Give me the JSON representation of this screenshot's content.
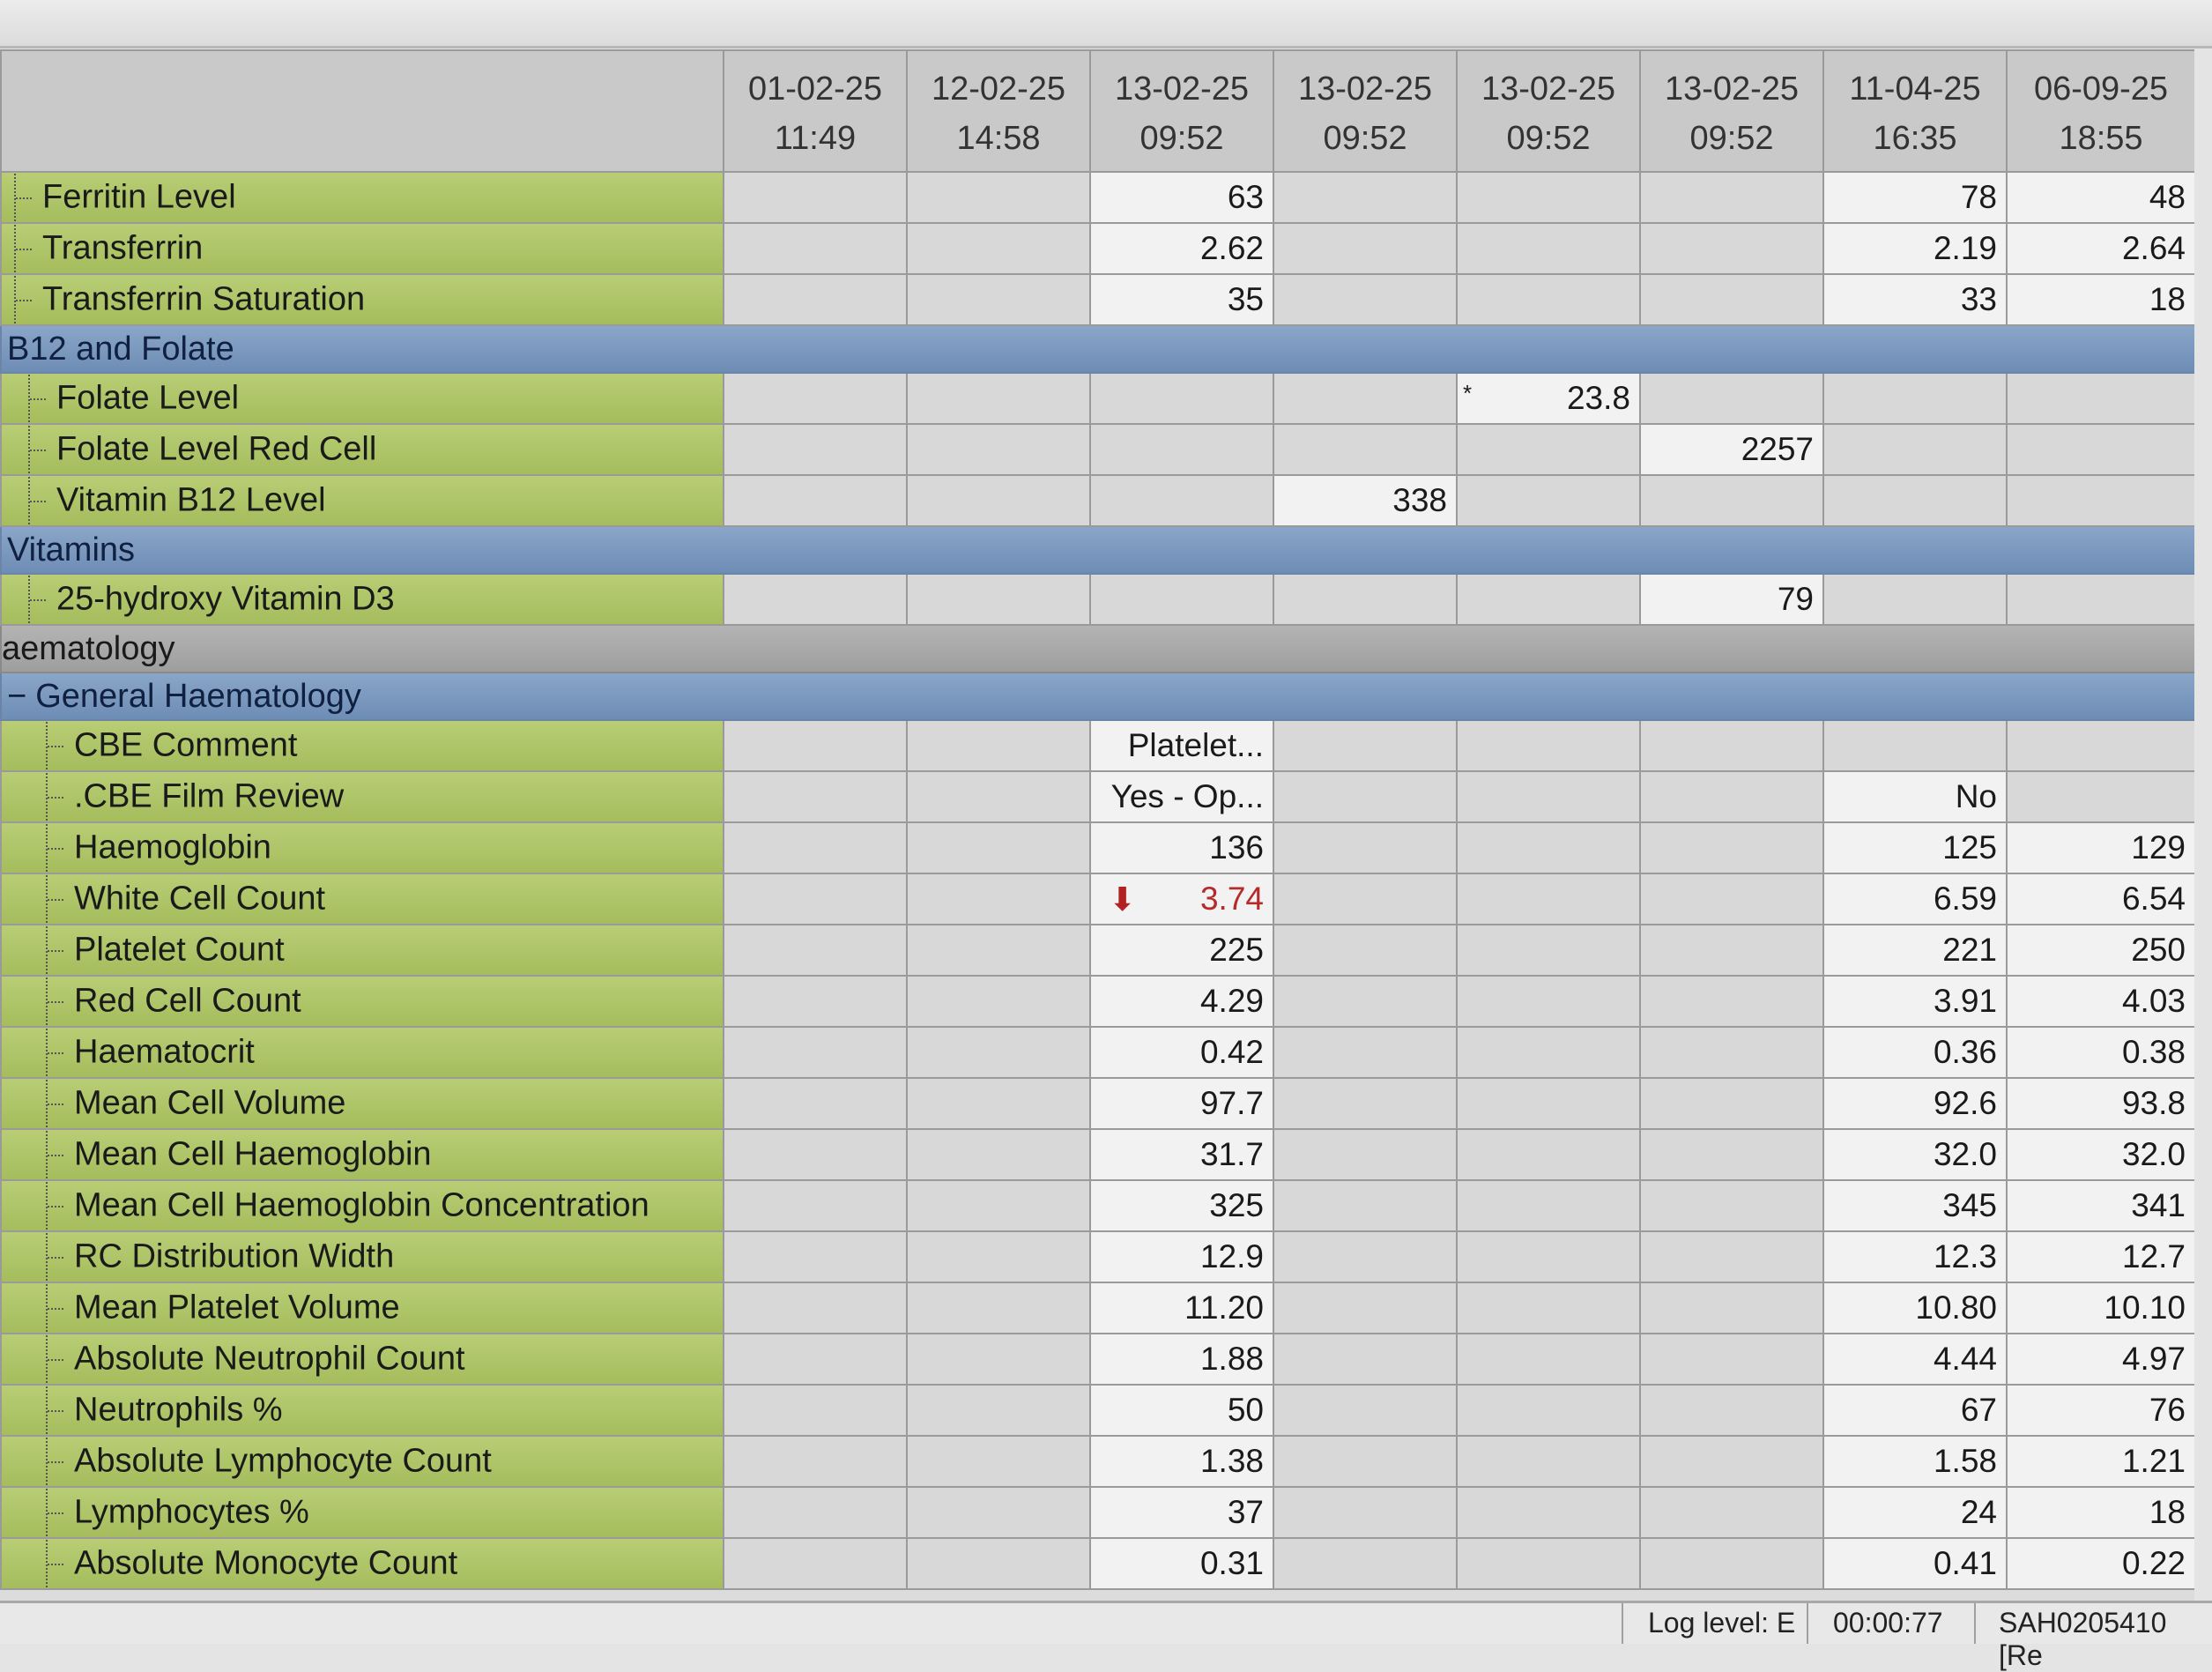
{
  "header": {
    "dates": [
      {
        "date": "01-02-25",
        "time": "11:49"
      },
      {
        "date": "12-02-25",
        "time": "14:58"
      },
      {
        "date": "13-02-25",
        "time": "09:52"
      },
      {
        "date": "13-02-25",
        "time": "09:52"
      },
      {
        "date": "13-02-25",
        "time": "09:52"
      },
      {
        "date": "13-02-25",
        "time": "09:52"
      },
      {
        "date": "11-04-25",
        "time": "16:35"
      },
      {
        "date": "06-09-25",
        "time": "18:55"
      }
    ]
  },
  "rows": [
    {
      "type": "test",
      "name": "Ferritin Level",
      "indent": 0,
      "values": [
        "",
        "",
        "63",
        "",
        "",
        "",
        "78",
        "48"
      ]
    },
    {
      "type": "test",
      "name": "Transferrin",
      "indent": 0,
      "values": [
        "",
        "",
        "2.62",
        "",
        "",
        "",
        "2.19",
        "2.64"
      ]
    },
    {
      "type": "test",
      "name": "Transferrin Saturation",
      "indent": 0,
      "values": [
        "",
        "",
        "35",
        "",
        "",
        "",
        "33",
        "18"
      ]
    },
    {
      "type": "section",
      "name": "B12 and Folate"
    },
    {
      "type": "test",
      "name": "Folate Level",
      "indent": 1,
      "values": [
        "",
        "",
        "",
        "",
        "23.8",
        "",
        "",
        ""
      ],
      "star_col": 4,
      "star": "*"
    },
    {
      "type": "test",
      "name": "Folate Level Red Cell",
      "indent": 1,
      "values": [
        "",
        "",
        "",
        "",
        "",
        "2257",
        "",
        ""
      ]
    },
    {
      "type": "test",
      "name": "Vitamin B12 Level",
      "indent": 1,
      "values": [
        "",
        "",
        "",
        "338",
        "",
        "",
        "",
        ""
      ]
    },
    {
      "type": "section",
      "name": "Vitamins"
    },
    {
      "type": "test",
      "name": "25-hydroxy Vitamin D3",
      "indent": 1,
      "values": [
        "",
        "",
        "",
        "",
        "",
        "79",
        "",
        ""
      ]
    },
    {
      "type": "category",
      "name": "aematology"
    },
    {
      "type": "section",
      "name": "General Haematology",
      "expander": "−"
    },
    {
      "type": "test",
      "name": "CBE Comment",
      "indent": 2,
      "values": [
        "",
        "",
        "Platelet...",
        "",
        "",
        "",
        "",
        ""
      ]
    },
    {
      "type": "test",
      "name": ".CBE Film Review",
      "indent": 2,
      "values": [
        "",
        "",
        "Yes - Op...",
        "",
        "",
        "",
        "No",
        ""
      ]
    },
    {
      "type": "test",
      "name": "Haemoglobin",
      "indent": 2,
      "values": [
        "",
        "",
        "136",
        "",
        "",
        "",
        "125",
        "129"
      ]
    },
    {
      "type": "test",
      "name": "White Cell Count",
      "indent": 2,
      "values": [
        "",
        "",
        "3.74",
        "",
        "",
        "",
        "6.59",
        "6.54"
      ],
      "abnormal_col": 2,
      "abnormal_flag": "low-arrow-icon",
      "abnormal_color": "#b52a2a"
    },
    {
      "type": "test",
      "name": "Platelet Count",
      "indent": 2,
      "values": [
        "",
        "",
        "225",
        "",
        "",
        "",
        "221",
        "250"
      ]
    },
    {
      "type": "test",
      "name": "Red Cell Count",
      "indent": 2,
      "values": [
        "",
        "",
        "4.29",
        "",
        "",
        "",
        "3.91",
        "4.03"
      ]
    },
    {
      "type": "test",
      "name": "Haematocrit",
      "indent": 2,
      "values": [
        "",
        "",
        "0.42",
        "",
        "",
        "",
        "0.36",
        "0.38"
      ]
    },
    {
      "type": "test",
      "name": "Mean Cell Volume",
      "indent": 2,
      "values": [
        "",
        "",
        "97.7",
        "",
        "",
        "",
        "92.6",
        "93.8"
      ]
    },
    {
      "type": "test",
      "name": "Mean Cell Haemoglobin",
      "indent": 2,
      "values": [
        "",
        "",
        "31.7",
        "",
        "",
        "",
        "32.0",
        "32.0"
      ]
    },
    {
      "type": "test",
      "name": "Mean Cell Haemoglobin Concentration",
      "indent": 2,
      "values": [
        "",
        "",
        "325",
        "",
        "",
        "",
        "345",
        "341"
      ]
    },
    {
      "type": "test",
      "name": "RC Distribution Width",
      "indent": 2,
      "values": [
        "",
        "",
        "12.9",
        "",
        "",
        "",
        "12.3",
        "12.7"
      ]
    },
    {
      "type": "test",
      "name": "Mean Platelet Volume",
      "indent": 2,
      "values": [
        "",
        "",
        "11.20",
        "",
        "",
        "",
        "10.80",
        "10.10"
      ]
    },
    {
      "type": "test",
      "name": "Absolute Neutrophil Count",
      "indent": 2,
      "values": [
        "",
        "",
        "1.88",
        "",
        "",
        "",
        "4.44",
        "4.97"
      ]
    },
    {
      "type": "test",
      "name": "Neutrophils %",
      "indent": 2,
      "values": [
        "",
        "",
        "50",
        "",
        "",
        "",
        "67",
        "76"
      ]
    },
    {
      "type": "test",
      "name": "Absolute Lymphocyte Count",
      "indent": 2,
      "values": [
        "",
        "",
        "1.38",
        "",
        "",
        "",
        "1.58",
        "1.21"
      ]
    },
    {
      "type": "test",
      "name": "Lymphocytes %",
      "indent": 2,
      "values": [
        "",
        "",
        "37",
        "",
        "",
        "",
        "24",
        "18"
      ]
    },
    {
      "type": "test",
      "name": "Absolute Monocyte Count",
      "indent": 2,
      "values": [
        "",
        "",
        "0.31",
        "",
        "",
        "",
        "0.41",
        "0.22"
      ]
    }
  ],
  "status_bar": {
    "log_level": "Log level: E",
    "elapsed": "00:00:77",
    "session": "SAH0205410 [Re"
  }
}
